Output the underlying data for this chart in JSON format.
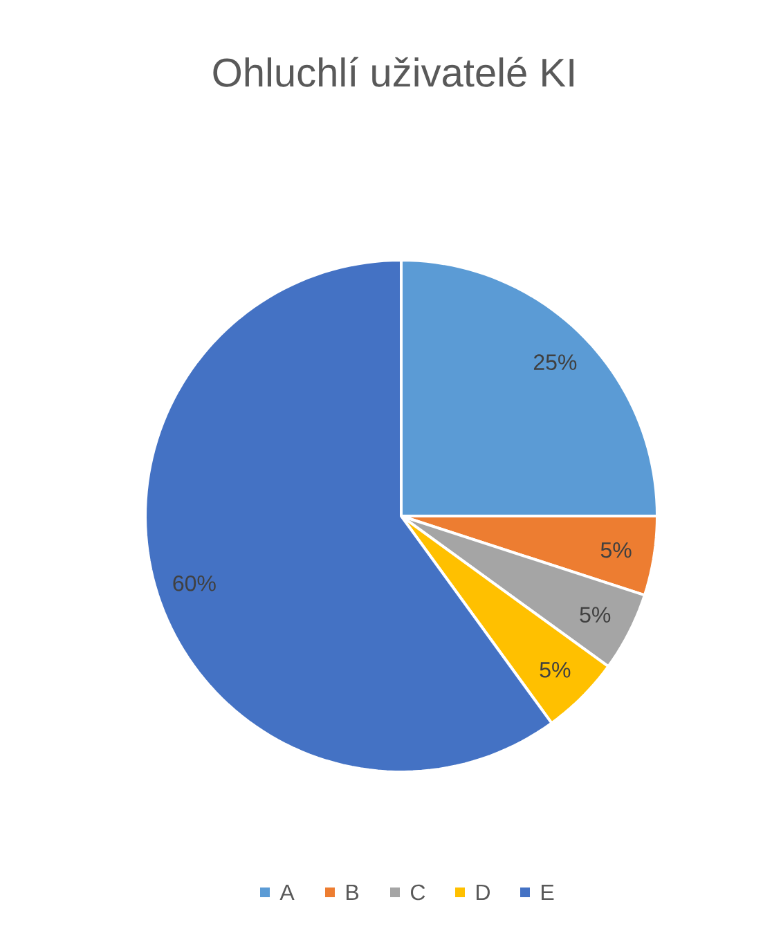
{
  "chart_data": {
    "type": "pie",
    "title": "Ohluchlí uživatelé KI",
    "categories": [
      "A",
      "B",
      "C",
      "D",
      "E"
    ],
    "values": [
      25,
      5,
      5,
      5,
      60
    ],
    "colors": [
      "#5b9bd5",
      "#ed7d31",
      "#a5a5a5",
      "#ffc000",
      "#4472c4"
    ],
    "value_labels": [
      "25%",
      "5%",
      "5%",
      "5%",
      "60%"
    ],
    "legend": "bottom"
  }
}
